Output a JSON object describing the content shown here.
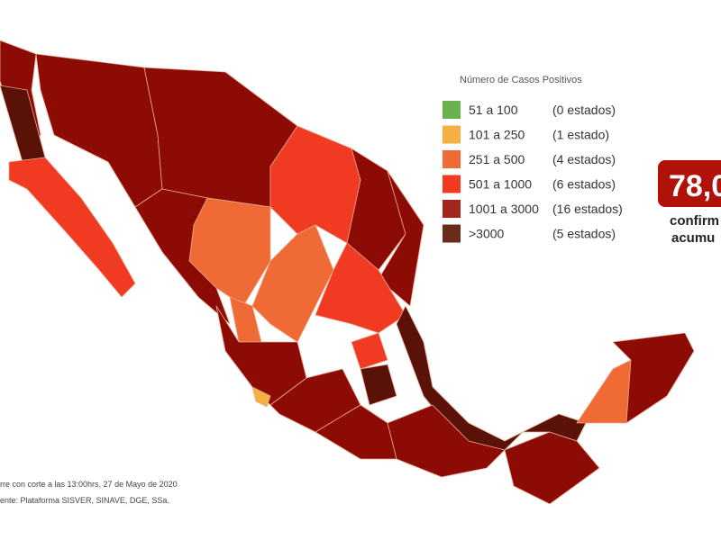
{
  "legend": {
    "title": "Número de Casos Positivos",
    "items": [
      {
        "range": "51 a 100",
        "count": "(0 estados)",
        "color": "#6ab04c"
      },
      {
        "range": "101 a 250",
        "count": "(1 estado)",
        "color": "#f5b041"
      },
      {
        "range": "251 a 500",
        "count": "(4 estados)",
        "color": "#ef6a35"
      },
      {
        "range": "501 a 1000",
        "count": "(6 estados)",
        "color": "#f03a22"
      },
      {
        "range": "1001 a 3000",
        "count": "(16 estados)",
        "color": "#a3261c"
      },
      {
        "range": ">3000",
        "count": "(5 estados)",
        "color": "#6b2a1c"
      }
    ]
  },
  "badge": {
    "value": "78,0",
    "lines": [
      "confirm",
      "acumu"
    ]
  },
  "footer": {
    "lines": [
      "rre con corte a las 13:00hrs, 27 de Mayo de 2020",
      "ente: Plataforma SISVER, SINAVE, DGE, SSa."
    ]
  }
}
